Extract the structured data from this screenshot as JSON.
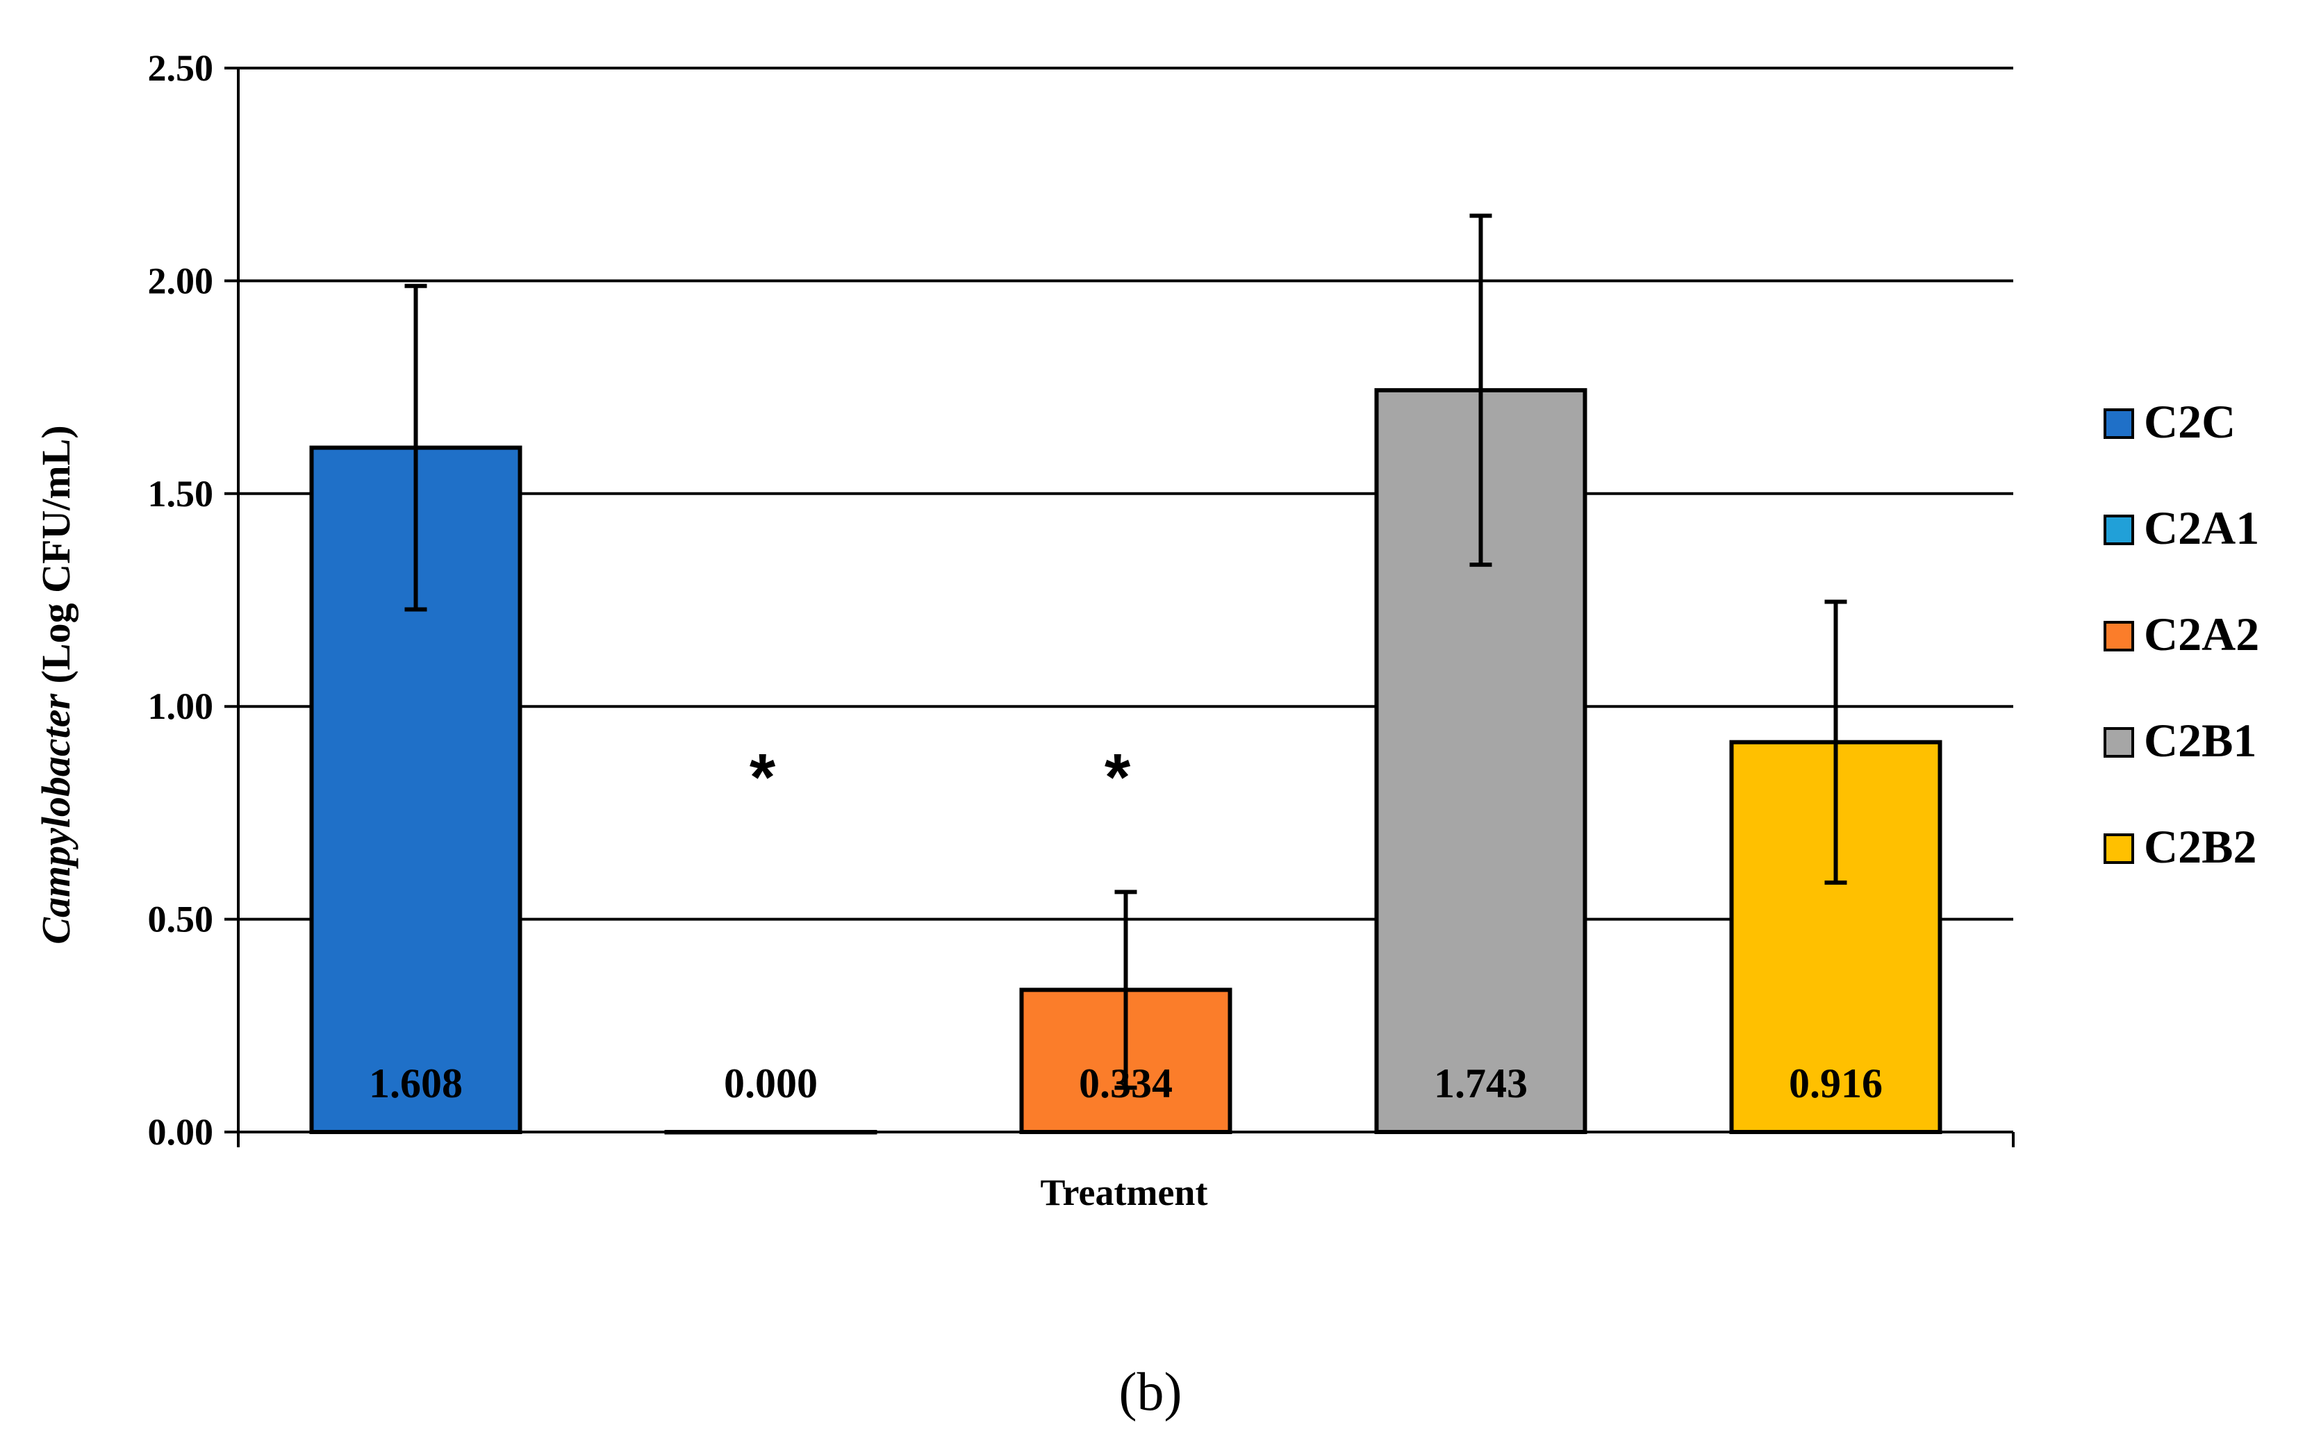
{
  "chart_data": {
    "type": "bar",
    "title": "",
    "xlabel": "Treatment",
    "ylabel_italic": "Campylobacter",
    "ylabel_rest": " (Log CFU/mL)",
    "ylim": [
      0,
      2.5
    ],
    "yticks": [
      "0.00",
      "0.50",
      "1.00",
      "1.50",
      "2.00",
      "2.50"
    ],
    "grid": true,
    "legend_position": "right",
    "series": [
      {
        "name": "C2C",
        "value": 1.608,
        "label": "1.608",
        "error": 0.38,
        "color": "#1f70c8",
        "significant": false
      },
      {
        "name": "C2A1",
        "value": 0.0,
        "label": "0.000",
        "error": 0.0,
        "color": "#21a0d8",
        "significant": true
      },
      {
        "name": "C2A2",
        "value": 0.334,
        "label": "0.334",
        "error": 0.23,
        "color": "#fb7d2a",
        "significant": true
      },
      {
        "name": "C2B1",
        "value": 1.743,
        "label": "1.743",
        "error": 0.41,
        "color": "#a6a6a6",
        "significant": false
      },
      {
        "name": "C2B2",
        "value": 0.916,
        "label": "0.916",
        "error": 0.33,
        "color": "#ffc000",
        "significant": false
      }
    ],
    "significance_marker": "*"
  },
  "caption": "(b)"
}
